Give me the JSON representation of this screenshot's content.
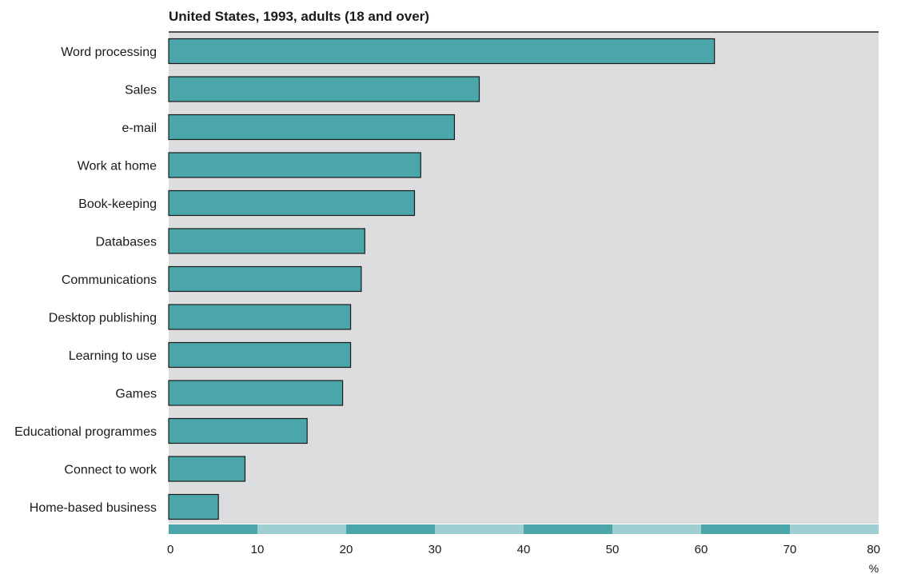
{
  "chart_data": {
    "type": "bar",
    "orientation": "horizontal",
    "title": "United States, 1993, adults (18 and over)",
    "categories": [
      "Word processing",
      "Sales",
      "e-mail",
      "Work at home",
      "Book-keeping",
      "Databases",
      "Communications",
      "Desktop publishing",
      "Learning to use",
      "Games",
      "Educational programmes",
      "Connect to work",
      "Home-based business"
    ],
    "values": [
      61.5,
      35,
      32.2,
      28.4,
      27.7,
      22.1,
      21.7,
      20.5,
      20.5,
      19.6,
      15.6,
      8.6,
      5.6
    ],
    "xlim": [
      0,
      80
    ],
    "xticks": [
      "0",
      "10",
      "20",
      "30",
      "40",
      "50",
      "60",
      "70",
      "80"
    ],
    "xunit": "%",
    "grid": false,
    "colors": {
      "bar": "#4aa6a9",
      "bar_border": "#1a1a1a",
      "plot_background": "#dcdddf",
      "scale_dark": "#4aa6a9",
      "scale_light": "#9fcfd1"
    }
  }
}
